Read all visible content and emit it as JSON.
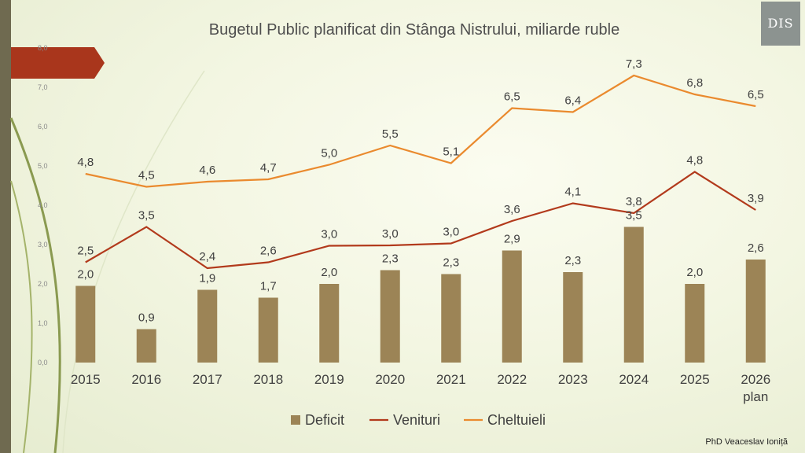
{
  "logo_text": "DIS",
  "author": "PhD Veaceslav Ioniță",
  "chart_data": {
    "type": "bar+line",
    "title": "Bugetul Public planificat din Stânga Nistrului, miliarde ruble",
    "categories": [
      "2015",
      "2016",
      "2017",
      "2018",
      "2019",
      "2020",
      "2021",
      "2022",
      "2023",
      "2024",
      "2025",
      "2026"
    ],
    "category_sublabels": [
      "",
      "",
      "",
      "",
      "",
      "",
      "",
      "",
      "",
      "",
      "",
      "plan"
    ],
    "yticks": [
      "0,0",
      "1,0",
      "2,0",
      "3,0",
      "4,0",
      "5,0",
      "6,0",
      "7,0",
      "8,0"
    ],
    "ylim": [
      0,
      8
    ],
    "series": [
      {
        "name": "Deficit",
        "type": "bar",
        "color": "#9c8456",
        "values": [
          1.95,
          0.85,
          1.85,
          1.65,
          2.0,
          2.35,
          2.25,
          2.85,
          2.3,
          3.45,
          2.0,
          2.62
        ],
        "labels": [
          "2,0",
          "0,9",
          "1,9",
          "1,7",
          "2,0",
          "2,3",
          "2,3",
          "2,9",
          "2,3",
          "3,5",
          "2,0",
          "2,6"
        ]
      },
      {
        "name": "Venituri",
        "type": "line",
        "color": "#b23a1c",
        "values": [
          2.55,
          3.45,
          2.4,
          2.55,
          2.97,
          2.98,
          3.03,
          3.6,
          4.05,
          3.8,
          4.85,
          3.88
        ],
        "labels": [
          "2,5",
          "3,5",
          "2,4",
          "2,6",
          "3,0",
          "3,0",
          "3,0",
          "3,6",
          "4,1",
          "3,8",
          "4,8",
          "3,9"
        ]
      },
      {
        "name": "Cheltuieli",
        "type": "line",
        "color": "#ea8a2e",
        "values": [
          4.8,
          4.47,
          4.6,
          4.66,
          5.03,
          5.52,
          5.07,
          6.47,
          6.37,
          7.3,
          6.82,
          6.52
        ],
        "labels": [
          "4,8",
          "4,5",
          "4,6",
          "4,7",
          "5,0",
          "5,5",
          "5,1",
          "6,5",
          "6,4",
          "7,3",
          "6,8",
          "6,5"
        ]
      }
    ],
    "legend_position": "bottom"
  }
}
